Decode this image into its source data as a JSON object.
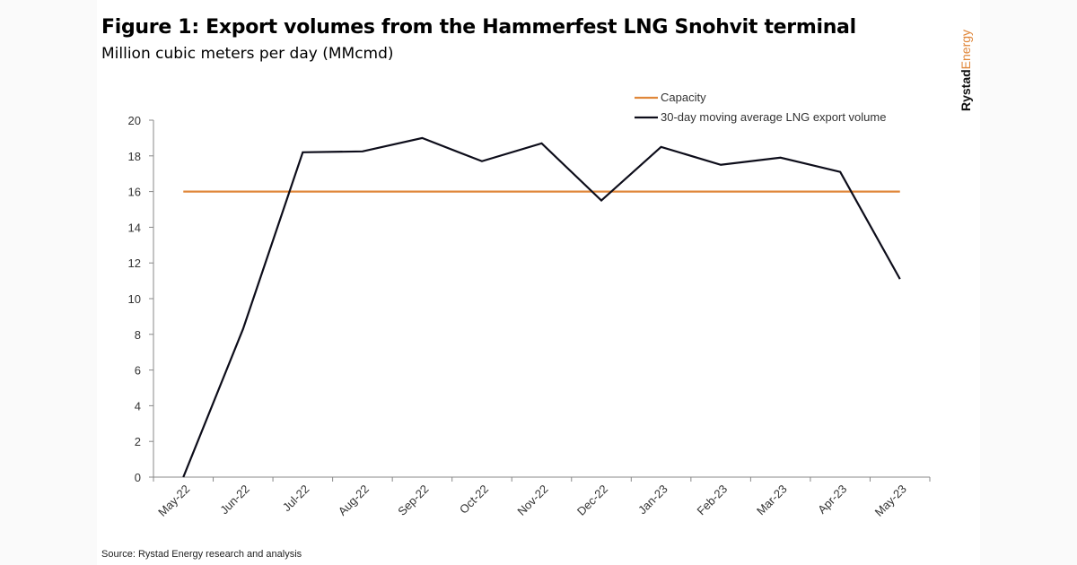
{
  "title": "Figure 1: Export volumes from the Hammerfest LNG Snohvit terminal",
  "subtitle": "Million cubic meters per day (MMcmd)",
  "source": "Source: Rystad Energy research and analysis",
  "logo": {
    "part1": "Rystad",
    "part2": "Energy"
  },
  "colors": {
    "capacity": "#e0873a",
    "volume": "#0d0d1a",
    "axis": "#888888"
  },
  "chart_data": {
    "type": "line",
    "title": "Figure 1: Export volumes from the Hammerfest LNG Snohvit terminal",
    "ylabel": "Million cubic meters per day (MMcmd)",
    "ylim": [
      0,
      20
    ],
    "yticks": [
      0,
      2,
      4,
      6,
      8,
      10,
      12,
      14,
      16,
      18,
      20
    ],
    "categories": [
      "May-22",
      "Jun-22",
      "Jul-22",
      "Aug-22",
      "Sep-22",
      "Oct-22",
      "Nov-22",
      "Dec-22",
      "Jan-23",
      "Feb-23",
      "Mar-23",
      "Apr-23",
      "May-23"
    ],
    "series": [
      {
        "name": "Capacity",
        "values": [
          16,
          16,
          16,
          16,
          16,
          16,
          16,
          16,
          16,
          16,
          16,
          16,
          16
        ]
      },
      {
        "name": "30-day moving average LNG export volume",
        "values": [
          0,
          8.3,
          18.2,
          18.25,
          19.0,
          17.7,
          18.7,
          15.5,
          18.5,
          17.5,
          17.9,
          17.1,
          11.1
        ]
      }
    ],
    "legend": "top-right",
    "grid": false
  }
}
